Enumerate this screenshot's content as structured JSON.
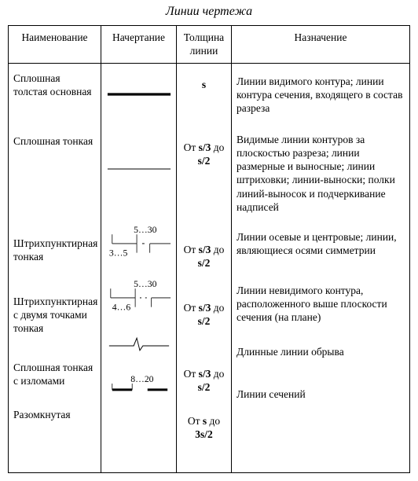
{
  "title": "Линии чертежа",
  "headers": {
    "name": "Наименование",
    "stroke": "Начертание",
    "thick": "Толщина линии",
    "desc": "Назначение"
  },
  "rows": [
    {
      "name": "Сплошная толстая основная",
      "thick_html": "<b>s</b>",
      "desc": "Линии видимого контура; линии контура сечения, входящего в состав разреза",
      "svg": "<svg viewBox='0 0 90 20' width='88' height='20'><line x1='4' y1='10' x2='86' y2='10' stroke='#000' stroke-width='3.2'/></svg>"
    },
    {
      "name": "Сплошная тонкая",
      "thick_html": "От <b>s/3</b> до <b>s/2</b>",
      "desc": "Видимые линии контуров за плоскостью разреза; линии размерные и выносные; линии штриховки; линии-выноски; полки линий-выносок и подчеркивание надписей",
      "svg": "<svg viewBox='0 0 90 20' width='88' height='20'><line x1='4' y1='10' x2='86' y2='10' stroke='#000' stroke-width='1'/></svg>"
    },
    {
      "name": "Штрихпунктирная тонкая",
      "thick_html": "От <b>s/3</b> до <b>s/2</b>",
      "desc": "Линии осевые и центровые; линии, являющиеся осями симметрии",
      "svg": "<svg viewBox='0 0 90 46' width='88' height='46'><text x='38' y='12' font-size='12' font-family=\"Times New Roman\" fill='#000'>5…30</text><line x1='10' y1='26' x2='42' y2='26' stroke='#000' stroke-width='1'/><line x1='49' y1='26' x2='52' y2='26' stroke='#000' stroke-width='1'/><line x1='59' y1='26' x2='86' y2='26' stroke='#000' stroke-width='1'/><line x1='10' y1='14' x2='10' y2='26' stroke='#000' stroke-width='0.8'/><line x1='42' y1='14' x2='42' y2='26' stroke='#000' stroke-width='0.8'/><line x1='42' y1='26' x2='42' y2='38' stroke='#000' stroke-width='0.8'/><line x1='59' y1='26' x2='59' y2='38' stroke='#000' stroke-width='0.8'/><text x='6' y='42' font-size='12' font-family=\"Times New Roman\" fill='#000'>3…5</text></svg>"
    },
    {
      "name": "Штрихпунктирная с двумя точками тонкая",
      "thick_html": "От <b>s/3</b> до <b>s/2</b>",
      "desc": "Линии невидимого контура, расположенного выше плоскости сечения (на плане)",
      "svg": "<svg viewBox='0 0 90 46' width='88' height='46'><text x='38' y='12' font-size='12' font-family=\"Times New Roman\" fill='#000'>5…30</text><line x1='8' y1='26' x2='40' y2='26' stroke='#000' stroke-width='1'/><line x1='46' y1='26' x2='48' y2='26' stroke='#000' stroke-width='1'/><line x1='53' y1='26' x2='55' y2='26' stroke='#000' stroke-width='1'/><line x1='61' y1='26' x2='86' y2='26' stroke='#000' stroke-width='1'/><line x1='8' y1='14' x2='8' y2='26' stroke='#000' stroke-width='0.8'/><line x1='40' y1='14' x2='40' y2='26' stroke='#000' stroke-width='0.8'/><line x1='40' y1='26' x2='40' y2='38' stroke='#000' stroke-width='0.8'/><line x1='61' y1='26' x2='61' y2='38' stroke='#000' stroke-width='0.8'/><text x='10' y='42' font-size='12' font-family=\"Times New Roman\" fill='#000'>4…6</text></svg>"
    },
    {
      "name": "Сплошная тонкая с изломами",
      "thick_html": "От <b>s/3</b> до <b>s/2</b>",
      "desc": "Длинные линии обрыва",
      "svg": "<svg viewBox='0 0 90 24' width='88' height='24'><polyline points='6,14 38,14 42,4 46,20 50,14 84,14' fill='none' stroke='#000' stroke-width='1'/></svg>"
    },
    {
      "name": "Разомкнутая",
      "thick_html": "От <b>s</b> до <b>3s/2</b>",
      "desc": "Линии сечений",
      "svg": "<svg viewBox='0 0 90 30' width='88' height='30'><text x='34' y='10' font-size='12' font-family=\"Times New Roman\" fill='#000'>8…20</text><line x1='10' y1='20' x2='36' y2='20' stroke='#000' stroke-width='3'/><line x1='56' y1='20' x2='82' y2='20' stroke='#000' stroke-width='3'/><line x1='10' y1='12' x2='10' y2='20' stroke='#000' stroke-width='0.8'/><line x1='36' y1='12' x2='36' y2='20' stroke='#000' stroke-width='0.8'/></svg>"
    }
  ]
}
